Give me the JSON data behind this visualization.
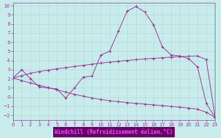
{
  "bg_color": "#c8ecec",
  "grid_color": "#b8d8d8",
  "line_color": "#993399",
  "axis_bg_color": "#660066",
  "xlabel": "Windchill (Refroidissement éolien,°C)",
  "xlim": [
    0,
    23
  ],
  "ylim": [
    -2.5,
    10.3
  ],
  "xticks": [
    0,
    1,
    2,
    3,
    4,
    5,
    6,
    7,
    8,
    9,
    10,
    11,
    12,
    13,
    14,
    15,
    16,
    17,
    18,
    19,
    20,
    21,
    22,
    23
  ],
  "yticks": [
    -2,
    -1,
    0,
    1,
    2,
    3,
    4,
    5,
    6,
    7,
    8,
    9,
    10
  ],
  "curve1_x": [
    0,
    1,
    2,
    3,
    4,
    5,
    6,
    7,
    8,
    9,
    10,
    11,
    12,
    13,
    14,
    15,
    16,
    17,
    18,
    19,
    20,
    21,
    22,
    23
  ],
  "curve1_y": [
    2.1,
    3.0,
    2.0,
    1.1,
    1.0,
    0.9,
    -0.1,
    1.0,
    2.2,
    2.3,
    4.6,
    5.0,
    7.2,
    9.4,
    9.9,
    9.3,
    7.9,
    5.5,
    4.6,
    4.5,
    4.2,
    3.3,
    -0.7,
    -2.2
  ],
  "curve2_x": [
    0,
    1,
    2,
    3,
    4,
    5,
    6,
    7,
    8,
    9,
    10,
    11,
    12,
    13,
    14,
    15,
    16,
    17,
    18,
    19,
    20,
    21,
    22,
    23
  ],
  "curve2_y": [
    2.1,
    2.35,
    2.6,
    2.8,
    2.95,
    3.1,
    3.22,
    3.35,
    3.47,
    3.6,
    3.72,
    3.82,
    3.92,
    4.01,
    4.1,
    4.17,
    4.24,
    4.3,
    4.37,
    4.42,
    4.47,
    4.5,
    4.1,
    -2.2
  ],
  "curve3_x": [
    0,
    1,
    2,
    3,
    4,
    5,
    6,
    7,
    8,
    9,
    10,
    11,
    12,
    13,
    14,
    15,
    16,
    17,
    18,
    19,
    20,
    21,
    22,
    23
  ],
  "curve3_y": [
    2.1,
    1.8,
    1.55,
    1.3,
    1.05,
    0.8,
    0.55,
    0.3,
    0.1,
    -0.1,
    -0.25,
    -0.4,
    -0.5,
    -0.6,
    -0.68,
    -0.76,
    -0.85,
    -0.93,
    -1.02,
    -1.1,
    -1.2,
    -1.33,
    -1.65,
    -2.2
  ]
}
